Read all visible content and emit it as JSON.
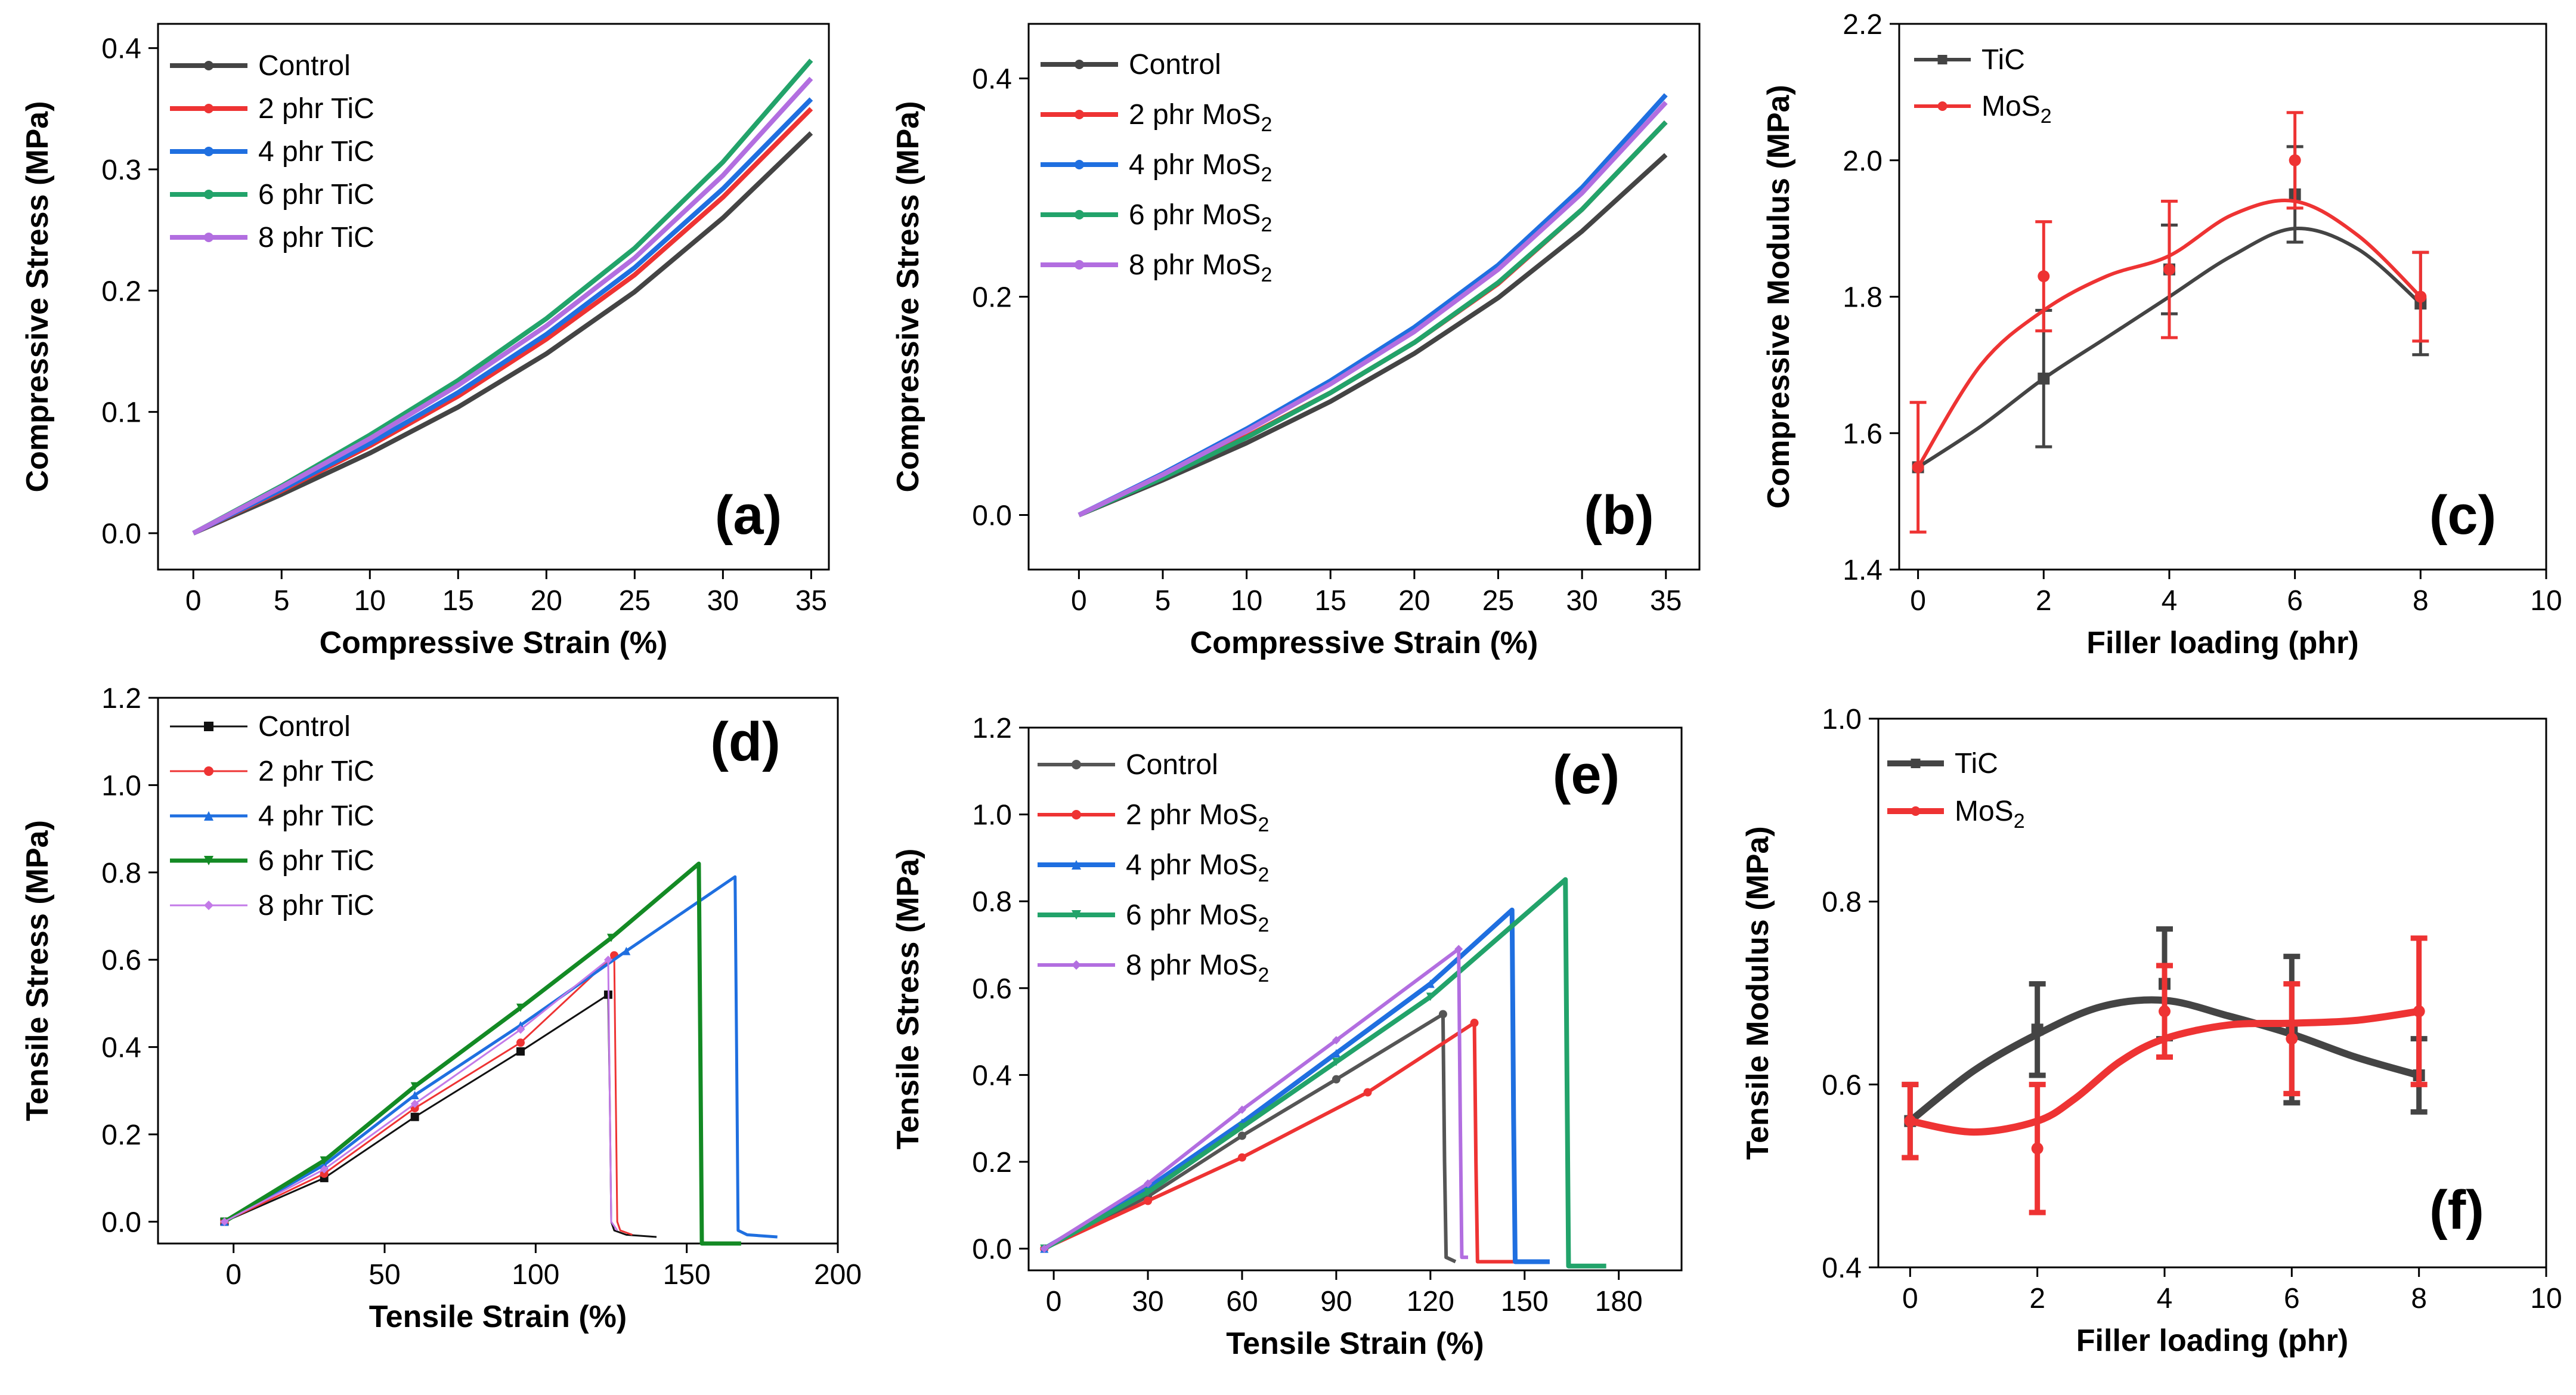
{
  "chart_data": [
    {
      "id": "a",
      "type": "line",
      "panel_label": "(a)",
      "xlabel": "Compressive Strain (%)",
      "ylabel": "Compressive Stress (MPa)",
      "xlim": [
        -2,
        36
      ],
      "ylim": [
        -0.03,
        0.42
      ],
      "xticks": [
        0,
        5,
        10,
        15,
        20,
        25,
        30,
        35
      ],
      "yticks": [
        0.0,
        0.1,
        0.2,
        0.3,
        0.4
      ],
      "ytick_labels": [
        "0.0",
        "0.1",
        "0.2",
        "0.3",
        "0.4"
      ],
      "legend_position": "top-left",
      "series": [
        {
          "name": "Control",
          "color": "#444444",
          "marker": "none",
          "width": 8,
          "x": [
            0,
            5,
            10,
            15,
            20,
            25,
            30,
            35
          ],
          "y": [
            0,
            0.032,
            0.066,
            0.104,
            0.148,
            0.199,
            0.26,
            0.33
          ]
        },
        {
          "name": "2 phr TiC",
          "color": "#ee3333",
          "marker": "none",
          "width": 8,
          "x": [
            0,
            5,
            10,
            15,
            20,
            25,
            30,
            35
          ],
          "y": [
            0,
            0.035,
            0.072,
            0.113,
            0.16,
            0.213,
            0.277,
            0.35
          ]
        },
        {
          "name": "4 phr TiC",
          "color": "#1f6fe0",
          "marker": "none",
          "width": 8,
          "x": [
            0,
            5,
            10,
            15,
            20,
            25,
            30,
            35
          ],
          "y": [
            0,
            0.036,
            0.074,
            0.116,
            0.164,
            0.219,
            0.284,
            0.358
          ]
        },
        {
          "name": "6 phr TiC",
          "color": "#22a36a",
          "marker": "none",
          "width": 8,
          "x": [
            0,
            5,
            10,
            15,
            20,
            25,
            30,
            35
          ],
          "y": [
            0,
            0.039,
            0.081,
            0.126,
            0.177,
            0.235,
            0.306,
            0.39
          ]
        },
        {
          "name": "8 phr TiC",
          "color": "#b26ee0",
          "marker": "none",
          "width": 8,
          "x": [
            0,
            5,
            10,
            15,
            20,
            25,
            30,
            35
          ],
          "y": [
            0,
            0.038,
            0.078,
            0.122,
            0.171,
            0.227,
            0.295,
            0.375
          ]
        }
      ]
    },
    {
      "id": "b",
      "type": "line",
      "panel_label": "(b)",
      "xlabel": "Compressive Strain (%)",
      "ylabel": "Compressive Stress (MPa)",
      "xlim": [
        -3,
        37
      ],
      "ylim": [
        -0.05,
        0.45
      ],
      "xticks": [
        0,
        5,
        10,
        15,
        20,
        25,
        30,
        35
      ],
      "yticks": [
        0.0,
        0.2,
        0.4
      ],
      "ytick_labels": [
        "0.0",
        "0.2",
        "0.4"
      ],
      "legend_position": "top-left",
      "series": [
        {
          "name": "Control",
          "color": "#444444",
          "marker": "none",
          "width": 8,
          "x": [
            0,
            5,
            10,
            15,
            20,
            25,
            30,
            35
          ],
          "y": [
            0,
            0.032,
            0.066,
            0.104,
            0.148,
            0.199,
            0.26,
            0.33
          ]
        },
        {
          "name": "2 phr MoS2",
          "color": "#ee3333",
          "marker": "none",
          "width": 8,
          "x": [
            0,
            5,
            10,
            15,
            20,
            25,
            30,
            35
          ],
          "y": [
            0,
            0.035,
            0.072,
            0.112,
            0.158,
            0.212,
            0.28,
            0.36
          ]
        },
        {
          "name": "4 phr MoS2",
          "color": "#1f6fe0",
          "marker": "none",
          "width": 8,
          "x": [
            0,
            5,
            10,
            15,
            20,
            25,
            30,
            35
          ],
          "y": [
            0,
            0.038,
            0.079,
            0.123,
            0.172,
            0.229,
            0.3,
            0.385
          ]
        },
        {
          "name": "6 phr MoS2",
          "color": "#22a36a",
          "marker": "none",
          "width": 8,
          "x": [
            0,
            5,
            10,
            15,
            20,
            25,
            30,
            35
          ],
          "y": [
            0,
            0.034,
            0.071,
            0.112,
            0.158,
            0.213,
            0.28,
            0.36
          ]
        },
        {
          "name": "8 phr MoS2",
          "color": "#b26ee0",
          "marker": "none",
          "width": 8,
          "x": [
            0,
            5,
            10,
            15,
            20,
            25,
            30,
            35
          ],
          "y": [
            0,
            0.037,
            0.077,
            0.12,
            0.168,
            0.225,
            0.295,
            0.378
          ]
        }
      ]
    },
    {
      "id": "c",
      "type": "line",
      "panel_label": "(c)",
      "xlabel": "Filler loading (phr)",
      "ylabel": "Compressive Modulus (MPa)",
      "xlim": [
        -0.3,
        10
      ],
      "ylim": [
        1.4,
        2.2
      ],
      "xticks": [
        0,
        2,
        4,
        6,
        8,
        10
      ],
      "yticks": [
        1.4,
        1.6,
        1.8,
        2.0,
        2.2
      ],
      "ytick_labels": [
        "1.4",
        "1.6",
        "1.8",
        "2.0",
        "2.2"
      ],
      "legend_position": "top-left",
      "series": [
        {
          "name": "TiC",
          "color": "#444444",
          "marker": "square",
          "width": 6,
          "x": [
            0,
            2,
            4,
            6,
            8
          ],
          "y": [
            1.55,
            1.68,
            1.84,
            1.95,
            1.79
          ],
          "err": [
            0.0,
            0.1,
            0.065,
            0.07,
            0.075
          ],
          "curve_x": [
            0,
            1,
            2,
            3,
            4,
            5,
            6,
            7,
            8
          ],
          "curve_y": [
            1.55,
            1.61,
            1.68,
            1.74,
            1.8,
            1.86,
            1.9,
            1.87,
            1.79
          ]
        },
        {
          "name": "MoS2",
          "color": "#ee3333",
          "marker": "circle",
          "width": 6,
          "x": [
            0,
            2,
            4,
            6,
            8
          ],
          "y": [
            1.55,
            1.83,
            1.84,
            2.0,
            1.8
          ],
          "err": [
            0.095,
            0.08,
            0.1,
            0.07,
            0.065
          ],
          "curve_x": [
            0,
            1,
            2,
            3,
            4,
            5,
            6,
            7,
            8
          ],
          "curve_y": [
            1.55,
            1.7,
            1.78,
            1.83,
            1.86,
            1.92,
            1.94,
            1.89,
            1.8
          ]
        }
      ]
    },
    {
      "id": "d",
      "type": "line",
      "panel_label": "(d)",
      "xlabel": "Tensile Strain (%)",
      "ylabel": "Tensile Stress (MPa)",
      "xlim": [
        -25,
        200
      ],
      "ylim": [
        -0.05,
        1.2
      ],
      "xticks": [
        0,
        50,
        100,
        150,
        200
      ],
      "yticks": [
        0.0,
        0.2,
        0.4,
        0.6,
        0.8,
        1.0,
        1.2
      ],
      "ytick_labels": [
        "0.0",
        "0.2",
        "0.4",
        "0.6",
        "0.8",
        "1.0",
        "1.2"
      ],
      "legend_position": "top-left",
      "series": [
        {
          "name": "Control",
          "color": "#111111",
          "marker": "square",
          "width": 3,
          "x": [
            -3,
            30,
            60,
            95,
            124,
            124.5,
            125,
            126,
            130,
            140
          ],
          "y": [
            0,
            0.1,
            0.24,
            0.39,
            0.52,
            0.3,
            0.0,
            -0.02,
            -0.03,
            -0.035
          ]
        },
        {
          "name": "2 phr TiC",
          "color": "#ee3333",
          "marker": "circle",
          "width": 3,
          "x": [
            -3,
            30,
            60,
            95,
            126,
            126.5,
            127,
            128,
            132
          ],
          "y": [
            0,
            0.11,
            0.26,
            0.41,
            0.61,
            0.3,
            0.0,
            -0.02,
            -0.03
          ]
        },
        {
          "name": "4 phr TiC",
          "color": "#1f6fe0",
          "marker": "triangle-up",
          "width": 5,
          "x": [
            -3,
            30,
            60,
            95,
            130,
            166,
            166.5,
            167,
            170,
            180
          ],
          "y": [
            0,
            0.13,
            0.29,
            0.45,
            0.62,
            0.79,
            0.4,
            -0.02,
            -0.03,
            -0.035
          ]
        },
        {
          "name": "6 phr TiC",
          "color": "#138a24",
          "marker": "triangle-down",
          "width": 7,
          "x": [
            -3,
            30,
            60,
            95,
            125,
            154,
            154.5,
            155,
            160,
            168
          ],
          "y": [
            0,
            0.14,
            0.31,
            0.49,
            0.65,
            0.82,
            0.4,
            -0.05,
            -0.05,
            -0.05
          ]
        },
        {
          "name": "8 phr TiC",
          "color": "#c37ae8",
          "marker": "diamond",
          "width": 3,
          "x": [
            -3,
            30,
            60,
            95,
            124,
            124.5,
            125,
            127
          ],
          "y": [
            0,
            0.12,
            0.27,
            0.44,
            0.6,
            0.3,
            0.0,
            -0.02
          ]
        }
      ]
    },
    {
      "id": "e",
      "type": "line",
      "panel_label": "(e)",
      "xlabel": "Tensile Strain (%)",
      "ylabel": "Tensile Stress (MPa)",
      "xlim": [
        -8,
        200
      ],
      "ylim": [
        -0.05,
        1.2
      ],
      "xticks": [
        0,
        30,
        60,
        90,
        120,
        150,
        180
      ],
      "yticks": [
        0.0,
        0.2,
        0.4,
        0.6,
        0.8,
        1.0,
        1.2
      ],
      "ytick_labels": [
        "0.0",
        "0.2",
        "0.4",
        "0.6",
        "0.8",
        "1.0",
        "1.2"
      ],
      "legend_position": "top-left",
      "series": [
        {
          "name": "Control",
          "color": "#555555",
          "marker": "circle",
          "width": 6,
          "x": [
            -3,
            30,
            60,
            90,
            124,
            124.5,
            125,
            128
          ],
          "y": [
            0,
            0.12,
            0.26,
            0.39,
            0.54,
            0.2,
            -0.02,
            -0.03
          ]
        },
        {
          "name": "2 phr MoS2",
          "color": "#ee3333",
          "marker": "circle",
          "width": 6,
          "x": [
            -3,
            30,
            60,
            100,
            134,
            134.5,
            135,
            140,
            148
          ],
          "y": [
            0,
            0.11,
            0.21,
            0.36,
            0.52,
            0.2,
            -0.03,
            -0.03,
            -0.03
          ]
        },
        {
          "name": "4 phr MoS2",
          "color": "#1f6fe0",
          "marker": "triangle-up",
          "width": 8,
          "x": [
            -3,
            30,
            60,
            90,
            120,
            146,
            146.5,
            147,
            152,
            158
          ],
          "y": [
            0,
            0.14,
            0.29,
            0.45,
            0.61,
            0.78,
            0.3,
            -0.03,
            -0.03,
            -0.03
          ]
        },
        {
          "name": "6 phr MoS2",
          "color": "#22a36a",
          "marker": "triangle-down",
          "width": 8,
          "x": [
            -3,
            30,
            60,
            90,
            120,
            163,
            163.5,
            164,
            170,
            176
          ],
          "y": [
            0,
            0.13,
            0.28,
            0.43,
            0.58,
            0.85,
            0.4,
            -0.04,
            -0.04,
            -0.04
          ]
        },
        {
          "name": "8 phr MoS2",
          "color": "#b26ee0",
          "marker": "diamond",
          "width": 6,
          "x": [
            -3,
            30,
            60,
            90,
            129,
            129.5,
            130,
            132
          ],
          "y": [
            0,
            0.15,
            0.32,
            0.48,
            0.69,
            0.3,
            -0.02,
            -0.02
          ]
        }
      ]
    },
    {
      "id": "f",
      "type": "line",
      "panel_label": "(f)",
      "xlabel": "Filler loading (phr)",
      "ylabel": "Tensile Modulus (MPa)",
      "xlim": [
        -0.5,
        10
      ],
      "ylim": [
        0.4,
        1.0
      ],
      "xticks": [
        0,
        2,
        4,
        6,
        8,
        10
      ],
      "yticks": [
        0.4,
        0.6,
        0.8,
        1.0
      ],
      "ytick_labels": [
        "0.4",
        "0.6",
        "0.8",
        "1.0"
      ],
      "legend_position": "top-left",
      "series": [
        {
          "name": "TiC",
          "color": "#444444",
          "marker": "square",
          "width": 12,
          "x": [
            0,
            2,
            4,
            6,
            8
          ],
          "y": [
            0.56,
            0.66,
            0.71,
            0.66,
            0.61
          ],
          "err": [
            0.04,
            0.05,
            0.06,
            0.08,
            0.04
          ],
          "curve_x": [
            0,
            1,
            2,
            3,
            4,
            5,
            6,
            7,
            8
          ],
          "curve_y": [
            0.56,
            0.615,
            0.655,
            0.685,
            0.692,
            0.675,
            0.655,
            0.63,
            0.61
          ]
        },
        {
          "name": "MoS2",
          "color": "#ee3333",
          "marker": "circle",
          "width": 12,
          "x": [
            0,
            2,
            4,
            6,
            8
          ],
          "y": [
            0.56,
            0.53,
            0.68,
            0.65,
            0.68
          ],
          "err": [
            0.04,
            0.07,
            0.05,
            0.06,
            0.08
          ],
          "curve_x": [
            0,
            1,
            2,
            2.6,
            3.3,
            4,
            5,
            6,
            7,
            8
          ],
          "curve_y": [
            0.56,
            0.548,
            0.56,
            0.585,
            0.625,
            0.65,
            0.665,
            0.667,
            0.67,
            0.68
          ]
        }
      ]
    }
  ]
}
